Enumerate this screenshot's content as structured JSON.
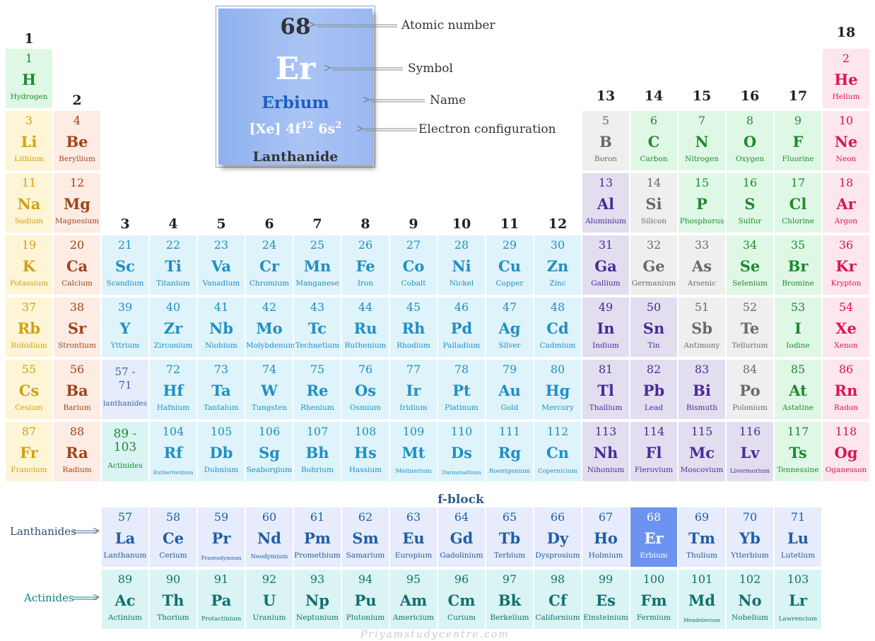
{
  "group_numbers": [
    "1",
    "2",
    "3",
    "4",
    "5",
    "6",
    "7",
    "8",
    "9",
    "10",
    "11",
    "12",
    "13",
    "14",
    "15",
    "16",
    "17",
    "18"
  ],
  "key": {
    "atomic_number": "68",
    "symbol": "Er",
    "name": "Erbium",
    "config_base": "[Xe] 4f",
    "config_sup1": "12",
    "config_mid": " 6s",
    "config_sup2": "2",
    "category": "Lanthanide",
    "callouts": {
      "atomic_number": "Atomic number",
      "symbol": "Symbol",
      "name": "Name",
      "config": "Electron configuration"
    }
  },
  "labels": {
    "fblock": "f-block",
    "lanthanides": "Lanthanides",
    "actinides": "Actinides",
    "watermark": "Priyamstudycentre.com"
  },
  "colors": {
    "alkali": "#fdf5d6",
    "alkaline": "#fdece3",
    "transition": "#dff3fa",
    "post_transition": "#e2def0",
    "metalloid": "#efefef",
    "nonmetal": "#dff8e6",
    "noble_gas": "#fde6ee",
    "lanthanide": "#e6ecfb",
    "actinide": "#d9f4f3",
    "highlight": "#6c93f0"
  },
  "elements": [
    {
      "n": "1",
      "s": "H",
      "name": "Hydrogen",
      "g": 1,
      "p": 1,
      "c": "hydrogen"
    },
    {
      "n": "2",
      "s": "He",
      "name": "Helium",
      "g": 18,
      "p": 1,
      "c": "noble"
    },
    {
      "n": "3",
      "s": "Li",
      "name": "Lithium",
      "g": 1,
      "p": 2,
      "c": "alkali"
    },
    {
      "n": "4",
      "s": "Be",
      "name": "Beryllium",
      "g": 2,
      "p": 2,
      "c": "alkaline"
    },
    {
      "n": "5",
      "s": "B",
      "name": "Boron",
      "g": 13,
      "p": 2,
      "c": "metalloid"
    },
    {
      "n": "6",
      "s": "C",
      "name": "Carbon",
      "g": 14,
      "p": 2,
      "c": "nonmetal"
    },
    {
      "n": "7",
      "s": "N",
      "name": "Nitrogen",
      "g": 15,
      "p": 2,
      "c": "nonmetal"
    },
    {
      "n": "8",
      "s": "O",
      "name": "Oxygen",
      "g": 16,
      "p": 2,
      "c": "nonmetal"
    },
    {
      "n": "9",
      "s": "F",
      "name": "Fluorine",
      "g": 17,
      "p": 2,
      "c": "nonmetal"
    },
    {
      "n": "10",
      "s": "Ne",
      "name": "Neon",
      "g": 18,
      "p": 2,
      "c": "noble"
    },
    {
      "n": "11",
      "s": "Na",
      "name": "Sodium",
      "g": 1,
      "p": 3,
      "c": "alkali"
    },
    {
      "n": "12",
      "s": "Mg",
      "name": "Magnesium",
      "g": 2,
      "p": 3,
      "c": "alkaline"
    },
    {
      "n": "13",
      "s": "Al",
      "name": "Aluminium",
      "g": 13,
      "p": 3,
      "c": "post"
    },
    {
      "n": "14",
      "s": "Si",
      "name": "Silicon",
      "g": 14,
      "p": 3,
      "c": "metalloid"
    },
    {
      "n": "15",
      "s": "P",
      "name": "Phosphorus",
      "g": 15,
      "p": 3,
      "c": "nonmetal"
    },
    {
      "n": "16",
      "s": "S",
      "name": "Sulfur",
      "g": 16,
      "p": 3,
      "c": "nonmetal"
    },
    {
      "n": "17",
      "s": "Cl",
      "name": "Chlorine",
      "g": 17,
      "p": 3,
      "c": "nonmetal"
    },
    {
      "n": "18",
      "s": "Ar",
      "name": "Argon",
      "g": 18,
      "p": 3,
      "c": "noble"
    },
    {
      "n": "19",
      "s": "K",
      "name": "Potassium",
      "g": 1,
      "p": 4,
      "c": "alkali"
    },
    {
      "n": "20",
      "s": "Ca",
      "name": "Calcium",
      "g": 2,
      "p": 4,
      "c": "alkaline"
    },
    {
      "n": "21",
      "s": "Sc",
      "name": "Scandium",
      "g": 3,
      "p": 4,
      "c": "trans"
    },
    {
      "n": "22",
      "s": "Ti",
      "name": "Titanium",
      "g": 4,
      "p": 4,
      "c": "trans"
    },
    {
      "n": "23",
      "s": "Va",
      "name": "Vanadium",
      "g": 5,
      "p": 4,
      "c": "trans"
    },
    {
      "n": "24",
      "s": "Cr",
      "name": "Chromium",
      "g": 6,
      "p": 4,
      "c": "trans"
    },
    {
      "n": "25",
      "s": "Mn",
      "name": "Manganese",
      "g": 7,
      "p": 4,
      "c": "trans"
    },
    {
      "n": "26",
      "s": "Fe",
      "name": "Iron",
      "g": 8,
      "p": 4,
      "c": "trans"
    },
    {
      "n": "27",
      "s": "Co",
      "name": "Cobalt",
      "g": 9,
      "p": 4,
      "c": "trans"
    },
    {
      "n": "28",
      "s": "Ni",
      "name": "Nickel",
      "g": 10,
      "p": 4,
      "c": "trans"
    },
    {
      "n": "29",
      "s": "Cu",
      "name": "Copper",
      "g": 11,
      "p": 4,
      "c": "trans"
    },
    {
      "n": "30",
      "s": "Zn",
      "name": "Zinc",
      "g": 12,
      "p": 4,
      "c": "trans"
    },
    {
      "n": "31",
      "s": "Ga",
      "name": "Gallium",
      "g": 13,
      "p": 4,
      "c": "post"
    },
    {
      "n": "32",
      "s": "Ge",
      "name": "Germanium",
      "g": 14,
      "p": 4,
      "c": "metalloid"
    },
    {
      "n": "33",
      "s": "As",
      "name": "Arsenic",
      "g": 15,
      "p": 4,
      "c": "metalloid"
    },
    {
      "n": "34",
      "s": "Se",
      "name": "Selenium",
      "g": 16,
      "p": 4,
      "c": "nonmetal"
    },
    {
      "n": "35",
      "s": "Br",
      "name": "Bromine",
      "g": 17,
      "p": 4,
      "c": "nonmetal"
    },
    {
      "n": "36",
      "s": "Kr",
      "name": "Krypton",
      "g": 18,
      "p": 4,
      "c": "noble"
    },
    {
      "n": "37",
      "s": "Rb",
      "name": "Rubidium",
      "g": 1,
      "p": 5,
      "c": "alkali"
    },
    {
      "n": "38",
      "s": "Sr",
      "name": "Strontium",
      "g": 2,
      "p": 5,
      "c": "alkaline"
    },
    {
      "n": "39",
      "s": "Y",
      "name": "Yttrium",
      "g": 3,
      "p": 5,
      "c": "trans"
    },
    {
      "n": "40",
      "s": "Zr",
      "name": "Zirconium",
      "g": 4,
      "p": 5,
      "c": "trans"
    },
    {
      "n": "41",
      "s": "Nb",
      "name": "Niobium",
      "g": 5,
      "p": 5,
      "c": "trans"
    },
    {
      "n": "42",
      "s": "Mo",
      "name": "Molybdenum",
      "g": 6,
      "p": 5,
      "c": "trans"
    },
    {
      "n": "43",
      "s": "Tc",
      "name": "Technetium",
      "g": 7,
      "p": 5,
      "c": "trans"
    },
    {
      "n": "44",
      "s": "Ru",
      "name": "Ruthenium",
      "g": 8,
      "p": 5,
      "c": "trans"
    },
    {
      "n": "45",
      "s": "Rh",
      "name": "Rhodium",
      "g": 9,
      "p": 5,
      "c": "trans"
    },
    {
      "n": "46",
      "s": "Pd",
      "name": "Palladium",
      "g": 10,
      "p": 5,
      "c": "trans"
    },
    {
      "n": "47",
      "s": "Ag",
      "name": "Silver",
      "g": 11,
      "p": 5,
      "c": "trans"
    },
    {
      "n": "48",
      "s": "Cd",
      "name": "Cadmium",
      "g": 12,
      "p": 5,
      "c": "trans"
    },
    {
      "n": "49",
      "s": "In",
      "name": "Indium",
      "g": 13,
      "p": 5,
      "c": "post"
    },
    {
      "n": "50",
      "s": "Sn",
      "name": "Tin",
      "g": 14,
      "p": 5,
      "c": "post"
    },
    {
      "n": "51",
      "s": "Sb",
      "name": "Antimony",
      "g": 15,
      "p": 5,
      "c": "metalloid"
    },
    {
      "n": "52",
      "s": "Te",
      "name": "Tellurium",
      "g": 16,
      "p": 5,
      "c": "metalloid"
    },
    {
      "n": "53",
      "s": "I",
      "name": "Iodine",
      "g": 17,
      "p": 5,
      "c": "nonmetal"
    },
    {
      "n": "54",
      "s": "Xe",
      "name": "Xenon",
      "g": 18,
      "p": 5,
      "c": "noble"
    },
    {
      "n": "55",
      "s": "Cs",
      "name": "Cesium",
      "g": 1,
      "p": 6,
      "c": "alkali"
    },
    {
      "n": "56",
      "s": "Ba",
      "name": "Barium",
      "g": 2,
      "p": 6,
      "c": "alkaline"
    },
    {
      "n": "72",
      "s": "Hf",
      "name": "Hafnium",
      "g": 4,
      "p": 6,
      "c": "trans"
    },
    {
      "n": "73",
      "s": "Ta",
      "name": "Tantalum",
      "g": 5,
      "p": 6,
      "c": "trans"
    },
    {
      "n": "74",
      "s": "W",
      "name": "Tungsten",
      "g": 6,
      "p": 6,
      "c": "trans"
    },
    {
      "n": "75",
      "s": "Re",
      "name": "Rhenium",
      "g": 7,
      "p": 6,
      "c": "trans"
    },
    {
      "n": "76",
      "s": "Os",
      "name": "Osmium",
      "g": 8,
      "p": 6,
      "c": "trans"
    },
    {
      "n": "77",
      "s": "Ir",
      "name": "Iridium",
      "g": 9,
      "p": 6,
      "c": "trans"
    },
    {
      "n": "78",
      "s": "Pt",
      "name": "Platinum",
      "g": 10,
      "p": 6,
      "c": "trans"
    },
    {
      "n": "79",
      "s": "Au",
      "name": "Gold",
      "g": 11,
      "p": 6,
      "c": "trans"
    },
    {
      "n": "80",
      "s": "Hg",
      "name": "Mercury",
      "g": 12,
      "p": 6,
      "c": "trans"
    },
    {
      "n": "81",
      "s": "Tl",
      "name": "Thallium",
      "g": 13,
      "p": 6,
      "c": "post"
    },
    {
      "n": "82",
      "s": "Pb",
      "name": "Lead",
      "g": 14,
      "p": 6,
      "c": "post"
    },
    {
      "n": "83",
      "s": "Bi",
      "name": "Bismuth",
      "g": 15,
      "p": 6,
      "c": "post"
    },
    {
      "n": "84",
      "s": "Po",
      "name": "Polonium",
      "g": 16,
      "p": 6,
      "c": "metalloid"
    },
    {
      "n": "85",
      "s": "At",
      "name": "Astatine",
      "g": 17,
      "p": 6,
      "c": "nonmetal"
    },
    {
      "n": "86",
      "s": "Rn",
      "name": "Radon",
      "g": 18,
      "p": 6,
      "c": "noble"
    },
    {
      "n": "87",
      "s": "Fr",
      "name": "Francium",
      "g": 1,
      "p": 7,
      "c": "alkali"
    },
    {
      "n": "88",
      "s": "Ra",
      "name": "Radium",
      "g": 2,
      "p": 7,
      "c": "alkaline"
    },
    {
      "n": "104",
      "s": "Rf",
      "name": "Rutherfordium",
      "g": 4,
      "p": 7,
      "c": "trans",
      "sz": "xs"
    },
    {
      "n": "105",
      "s": "Db",
      "name": "Dubnium",
      "g": 5,
      "p": 7,
      "c": "trans"
    },
    {
      "n": "106",
      "s": "Sg",
      "name": "Seaborgium",
      "g": 6,
      "p": 7,
      "c": "trans"
    },
    {
      "n": "107",
      "s": "Bh",
      "name": "Bohrium",
      "g": 7,
      "p": 7,
      "c": "trans"
    },
    {
      "n": "108",
      "s": "Hs",
      "name": "Hassium",
      "g": 8,
      "p": 7,
      "c": "trans"
    },
    {
      "n": "109",
      "s": "Mt",
      "name": "Meitnerium",
      "g": 9,
      "p": 7,
      "c": "trans",
      "sz": "small"
    },
    {
      "n": "110",
      "s": "Ds",
      "name": "Darmstadtium",
      "g": 10,
      "p": 7,
      "c": "trans",
      "sz": "xs"
    },
    {
      "n": "111",
      "s": "Rg",
      "name": "Roentgenium",
      "g": 11,
      "p": 7,
      "c": "trans",
      "sz": "small"
    },
    {
      "n": "112",
      "s": "Cn",
      "name": "Copernicium",
      "g": 12,
      "p": 7,
      "c": "trans",
      "sz": "small"
    },
    {
      "n": "113",
      "s": "Nh",
      "name": "Nihonium",
      "g": 13,
      "p": 7,
      "c": "post"
    },
    {
      "n": "114",
      "s": "Fl",
      "name": "Flerovium",
      "g": 14,
      "p": 7,
      "c": "post"
    },
    {
      "n": "115",
      "s": "Mc",
      "name": "Moscovium",
      "g": 15,
      "p": 7,
      "c": "post"
    },
    {
      "n": "116",
      "s": "Lv",
      "name": "Livermorium",
      "g": 16,
      "p": 7,
      "c": "post",
      "sz": "small"
    },
    {
      "n": "117",
      "s": "Ts",
      "name": "Tennessine",
      "g": 17,
      "p": 7,
      "c": "nonmetal"
    },
    {
      "n": "118",
      "s": "Og",
      "name": "Oganesson",
      "g": 18,
      "p": 7,
      "c": "noble"
    }
  ],
  "ref_cells": [
    {
      "n": "57 -",
      "n2": "71",
      "name": "lanthanides",
      "g": 3,
      "p": 6,
      "c": "lanth"
    },
    {
      "n": "89 -",
      "n2": "103",
      "name": "Actinides",
      "g": 3,
      "p": 7,
      "c": "actin"
    }
  ],
  "lanthanides": [
    {
      "n": "57",
      "s": "La",
      "name": "Lanthanum"
    },
    {
      "n": "58",
      "s": "Ce",
      "name": "Cerium"
    },
    {
      "n": "59",
      "s": "Pr",
      "name": "Praseodymium",
      "sz": "xs"
    },
    {
      "n": "60",
      "s": "Nd",
      "name": "Neodymium",
      "sz": "small"
    },
    {
      "n": "61",
      "s": "Pm",
      "name": "Promethium"
    },
    {
      "n": "62",
      "s": "Sm",
      "name": "Samarium"
    },
    {
      "n": "63",
      "s": "Eu",
      "name": "Europium"
    },
    {
      "n": "64",
      "s": "Gd",
      "name": "Gadolinium"
    },
    {
      "n": "65",
      "s": "Tb",
      "name": "Terbium"
    },
    {
      "n": "66",
      "s": "Dy",
      "name": "Dysprosium"
    },
    {
      "n": "67",
      "s": "Ho",
      "name": "Holmium"
    },
    {
      "n": "68",
      "s": "Er",
      "name": "Erbium",
      "hl": true
    },
    {
      "n": "69",
      "s": "Tm",
      "name": "Thulium"
    },
    {
      "n": "70",
      "s": "Yb",
      "name": "Ytterbium"
    },
    {
      "n": "71",
      "s": "Lu",
      "name": "Lutetium"
    }
  ],
  "actinides": [
    {
      "n": "89",
      "s": "Ac",
      "name": "Actinium"
    },
    {
      "n": "90",
      "s": "Th",
      "name": "Thorium"
    },
    {
      "n": "91",
      "s": "Pa",
      "name": "Protactinium",
      "sz": "small"
    },
    {
      "n": "92",
      "s": "U",
      "name": "Uranium"
    },
    {
      "n": "93",
      "s": "Np",
      "name": "Neptunium"
    },
    {
      "n": "94",
      "s": "Pu",
      "name": "Plutonium"
    },
    {
      "n": "95",
      "s": "Am",
      "name": "Americium"
    },
    {
      "n": "96",
      "s": "Cm",
      "name": "Curium"
    },
    {
      "n": "97",
      "s": "Bk",
      "name": "Berkelium"
    },
    {
      "n": "98",
      "s": "Cf",
      "name": "Californium"
    },
    {
      "n": "99",
      "s": "Es",
      "name": "Einsteinium"
    },
    {
      "n": "100",
      "s": "Fm",
      "name": "Fermium"
    },
    {
      "n": "101",
      "s": "Md",
      "name": "Mendelevium",
      "sz": "xs"
    },
    {
      "n": "102",
      "s": "No",
      "name": "Nobelium"
    },
    {
      "n": "103",
      "s": "Lr",
      "name": "Lawrencium",
      "sz": "small"
    }
  ]
}
